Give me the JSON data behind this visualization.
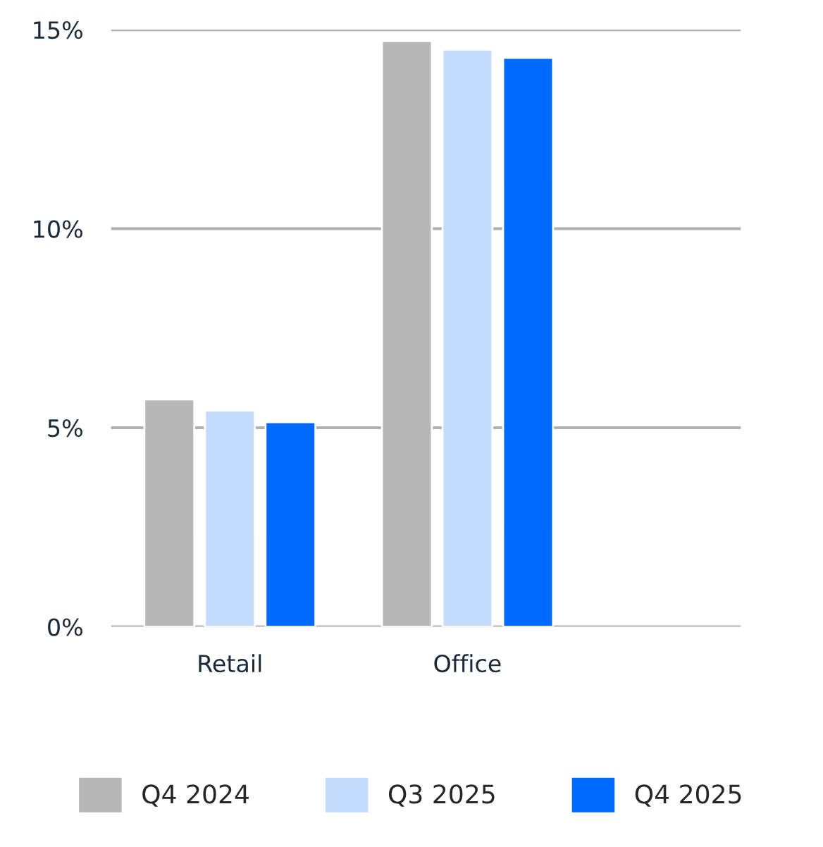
{
  "chart_data": {
    "type": "bar",
    "categories": [
      "Retail",
      "Office"
    ],
    "series": [
      {
        "name": "Q4 2024",
        "color": "#b7b7b7",
        "values": [
          5.71,
          14.71
        ]
      },
      {
        "name": "Q3 2025",
        "color": "#c4ddff",
        "values": [
          5.43,
          14.5
        ]
      },
      {
        "name": "Q4 2025",
        "color": "#006aff",
        "values": [
          5.14,
          14.29
        ]
      }
    ],
    "ylim": [
      0,
      15
    ],
    "yticks": [
      {
        "value": 0,
        "label": "0%"
      },
      {
        "value": 5,
        "label": "5%"
      },
      {
        "value": 10,
        "label": "10%"
      },
      {
        "value": 15,
        "label": "15%"
      }
    ],
    "grid": "y",
    "legend": "bottom"
  }
}
